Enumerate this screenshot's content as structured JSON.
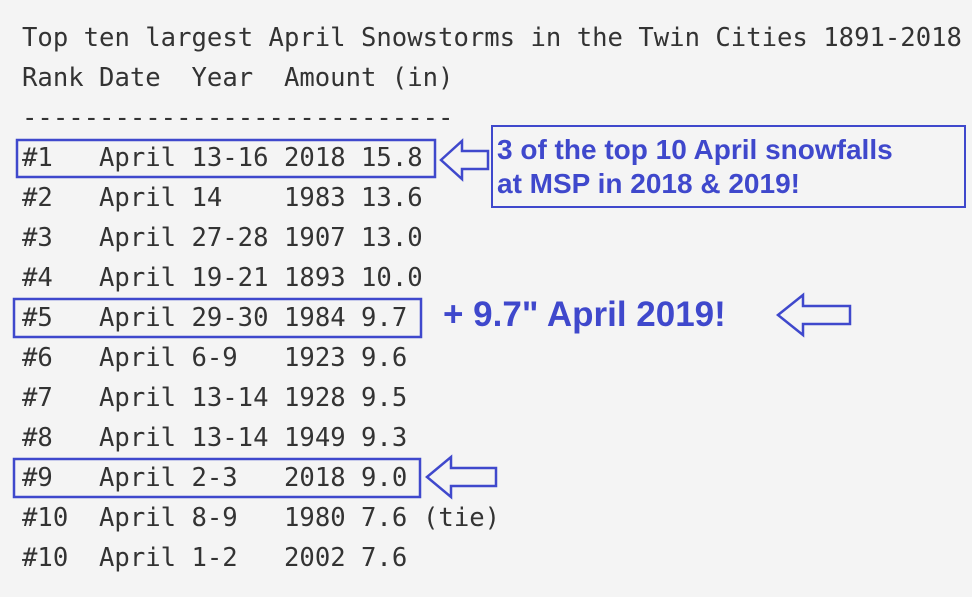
{
  "title": "Top ten largest April Snowstorms in the Twin Cities 1891-2018",
  "header": "Rank Date  Year  Amount (in)",
  "separator": "----------------------------",
  "rows": [
    {
      "rank": "#1",
      "date": "April 13-16",
      "year": "2018",
      "amount": "15.8"
    },
    {
      "rank": "#2",
      "date": "April 14",
      "year": "1983",
      "amount": "13.6"
    },
    {
      "rank": "#3",
      "date": "April 27-28",
      "year": "1907",
      "amount": "13.0"
    },
    {
      "rank": "#4",
      "date": "April 19-21",
      "year": "1893",
      "amount": "10.0"
    },
    {
      "rank": "#5",
      "date": "April 29-30",
      "year": "1984",
      "amount": "9.7"
    },
    {
      "rank": "#6",
      "date": "April 6-9",
      "year": "1923",
      "amount": "9.6"
    },
    {
      "rank": "#7",
      "date": "April 13-14",
      "year": "1928",
      "amount": "9.5"
    },
    {
      "rank": "#8",
      "date": "April 13-14",
      "year": "1949",
      "amount": "9.3"
    },
    {
      "rank": "#9",
      "date": "April 2-3",
      "year": "2018",
      "amount": "9.0"
    },
    {
      "rank": "#10",
      "date": "April 8-9",
      "year": "1980",
      "amount": "7.6",
      "note": "(tie)"
    },
    {
      "rank": "#10",
      "date": "April 1-2",
      "year": "2002",
      "amount": "7.6"
    }
  ],
  "annotations": {
    "callout": [
      "3 of the top 10 April snowfalls",
      "at MSP in 2018 & 2019!"
    ],
    "extra": "+ 9.7\" April 2019!"
  }
}
